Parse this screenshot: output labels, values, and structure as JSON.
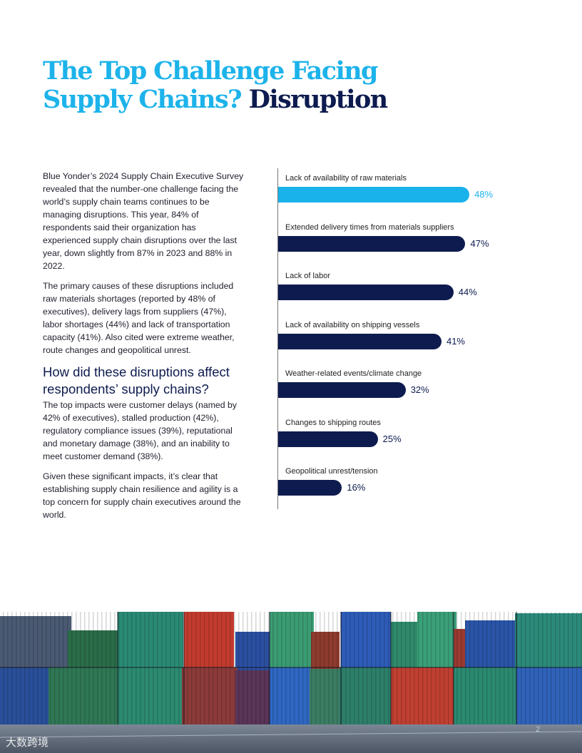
{
  "title": {
    "line1": "The Top Challenge Facing",
    "line2_part1": "Supply Chains?",
    "line2_part2": "Disruption"
  },
  "body": {
    "para1": "Blue Yonder’s 2024 Supply Chain Executive Survey revealed that the number-one challenge facing the world’s supply chain teams continues to be managing disruptions. This year, 84% of respondents said their organization has experienced supply chain disruptions over the last year, down slightly from 87% in 2023 and 88% in 2022.",
    "para2": "The primary causes of these disruptions included raw materials shortages (reported by 48% of executives), delivery lags from suppliers (47%), labor shortages (44%) and lack of transportation capacity (41%). Also cited were extreme weather, route changes and geopolitical unrest.",
    "heading": "How did these disruptions affect respondents’ supply chains?",
    "para3": "The top impacts were customer delays (named by 42% of executives), stalled production (42%), regulatory compliance issues (39%), reputational and monetary damage (38%), and an inability to meet customer demand (38%).",
    "para4": "Given these significant impacts, it’s clear that establishing supply chain resilience and agility is a top concern for supply chain executives around the world."
  },
  "chart_data": {
    "type": "bar",
    "orientation": "horizontal",
    "categories": [
      "Lack of availability of raw materials",
      "Extended delivery times from materials suppliers",
      "Lack of labor",
      "Lack of availability on shipping vessels",
      "Weather-related events/climate change",
      "Changes to shipping routes",
      "Geopolitical unrest/tension"
    ],
    "values": [
      48,
      47,
      44,
      41,
      32,
      25,
      16
    ],
    "value_labels": [
      "48%",
      "47%",
      "44%",
      "41%",
      "32%",
      "25%",
      "16%"
    ],
    "highlight_index": 0,
    "colors": {
      "highlight": "#1ab2ea",
      "default": "#0d1b4f"
    },
    "title": "",
    "xlabel": "",
    "ylabel": "",
    "xlim": [
      0,
      53
    ]
  },
  "footer": {
    "logo_text": "大数跨境",
    "page_number": "2"
  }
}
